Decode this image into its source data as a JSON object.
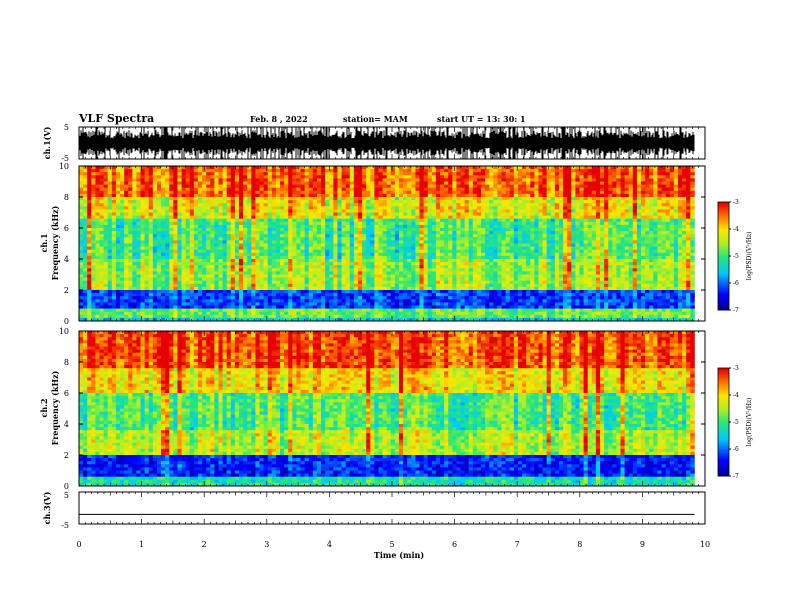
{
  "header": {
    "title": "VLF Spectra",
    "date": "Feb. 8 , 2022",
    "station": "station= MAM",
    "start": "start UT = 13: 30: 1"
  },
  "chart_data": [
    {
      "type": "line",
      "name": "waveform-ch1",
      "ylabel": "ch.1(V)",
      "ylim": [
        -5,
        5
      ],
      "yticks": [
        "5",
        "-5"
      ],
      "xlim": [
        0,
        10
      ],
      "description_values": {
        "amplitude_v": 5
      }
    },
    {
      "type": "heatmap",
      "name": "spectrogram-ch1",
      "ylabel": "ch.1",
      "ylabel2": "Frequency (kHz)",
      "ylim": [
        0,
        10
      ],
      "yticks": [
        "0",
        "2",
        "4",
        "6",
        "8",
        "10"
      ],
      "xlim": [
        0,
        10
      ],
      "data_end_min": 9.83,
      "colorbar": {
        "label": "log(PSD)(V²/Hz)",
        "range": [
          -7,
          -3
        ],
        "ticks": [
          "-3",
          "-4",
          "-5",
          "-6",
          "-7"
        ]
      },
      "bands_khz": [
        {
          "from": 0,
          "to": 0.3,
          "level": -5.5
        },
        {
          "from": 0.3,
          "to": 0.8,
          "level": -4.8
        },
        {
          "from": 0.8,
          "to": 2.0,
          "level": -6.2
        },
        {
          "from": 2.0,
          "to": 4.0,
          "level": -4.6
        },
        {
          "from": 4.0,
          "to": 6.5,
          "level": -5.0
        },
        {
          "from": 6.5,
          "to": 8.0,
          "level": -4.2
        },
        {
          "from": 8.0,
          "to": 10.0,
          "level": -3.5
        }
      ]
    },
    {
      "type": "heatmap",
      "name": "spectrogram-ch2",
      "ylabel": "ch.2",
      "ylabel2": "Frequency (kHz)",
      "ylim": [
        0,
        10
      ],
      "yticks": [
        "0",
        "2",
        "4",
        "6",
        "8",
        "10"
      ],
      "xlim": [
        0,
        10
      ],
      "data_end_min": 9.83,
      "colorbar": {
        "label": "log(PSD)(V²/Hz)",
        "range": [
          -7,
          -3
        ],
        "ticks": [
          "-3",
          "-4",
          "-5",
          "-6",
          "-7"
        ]
      },
      "bands_khz": [
        {
          "from": 0,
          "to": 0.5,
          "level": -5.2
        },
        {
          "from": 0.5,
          "to": 2.0,
          "level": -6.3
        },
        {
          "from": 2.0,
          "to": 3.5,
          "level": -4.4
        },
        {
          "from": 3.5,
          "to": 6.0,
          "level": -4.9
        },
        {
          "from": 6.0,
          "to": 7.5,
          "level": -4.0
        },
        {
          "from": 7.5,
          "to": 10.0,
          "level": -3.3
        }
      ]
    },
    {
      "type": "line",
      "name": "waveform-ch3",
      "ylabel": "ch.3(V)",
      "ylim": [
        -5,
        5
      ],
      "yticks": [
        "5",
        "-5"
      ],
      "xlim": [
        0,
        10
      ],
      "xlabel": "Time (min)",
      "xticks": [
        "0",
        "1",
        "2",
        "3",
        "4",
        "5",
        "6",
        "7",
        "8",
        "9",
        "10"
      ],
      "x": [
        0,
        9.83
      ],
      "y": [
        -2,
        -2
      ]
    }
  ]
}
